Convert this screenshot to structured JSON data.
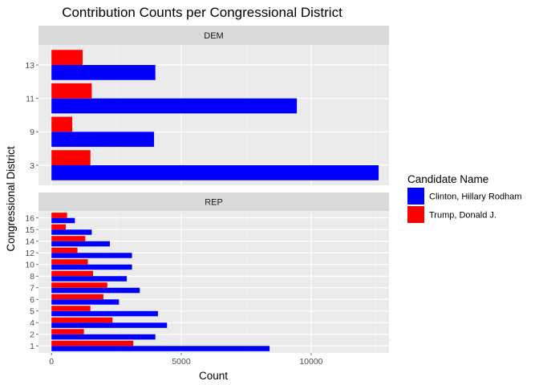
{
  "chart_data": {
    "type": "bar",
    "orientation": "horizontal",
    "title": "Contribution Counts per Congressional District",
    "xlabel": "Count",
    "ylabel": "Congressional District",
    "xlim": [
      -500,
      13000
    ],
    "x_ticks": [
      0,
      5000,
      10000
    ],
    "grid": true,
    "legend": {
      "title": "Candidate Name",
      "position": "right",
      "entries": [
        {
          "name": "Clinton, Hillary Rodham",
          "color": "#0000ff"
        },
        {
          "name": "Trump, Donald J.",
          "color": "#ff0000"
        }
      ]
    },
    "panels": [
      {
        "label": "DEM",
        "categories": [
          "3",
          "9",
          "11",
          "13"
        ],
        "series": [
          {
            "name": "Clinton, Hillary Rodham",
            "color": "#0000ff",
            "values": [
              12600,
              3950,
              9450,
              4000
            ]
          },
          {
            "name": "Trump, Donald J.",
            "color": "#ff0000",
            "values": [
              1500,
              800,
              1550,
              1200
            ]
          }
        ]
      },
      {
        "label": "REP",
        "categories": [
          "1",
          "2",
          "4",
          "5",
          "6",
          "7",
          "8",
          "10",
          "12",
          "14",
          "15",
          "16"
        ],
        "series": [
          {
            "name": "Clinton, Hillary Rodham",
            "color": "#0000ff",
            "values": [
              8400,
              4000,
              4450,
              4100,
              2600,
              3400,
              2900,
              3100,
              3100,
              2250,
              1550,
              900
            ]
          },
          {
            "name": "Trump, Donald J.",
            "color": "#ff0000",
            "values": [
              3150,
              1250,
              2350,
              1500,
              2000,
              2150,
              1600,
              1400,
              1000,
              1300,
              550,
              600
            ]
          }
        ]
      }
    ]
  }
}
